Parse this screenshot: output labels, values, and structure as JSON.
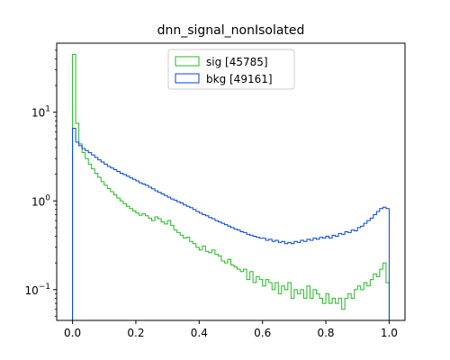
{
  "chart_data": {
    "type": "histogram-step",
    "title": "dnn_signal_nonIsolated",
    "xlabel": "",
    "ylabel": "",
    "xlim": [
      -0.05,
      1.05
    ],
    "ylim": [
      0.045,
      60
    ],
    "yscale": "log",
    "x_ticks": [
      0.0,
      0.2,
      0.4,
      0.6,
      0.8,
      1.0
    ],
    "x_tick_labels": [
      "0.0",
      "0.2",
      "0.4",
      "0.6",
      "0.8",
      "1.0"
    ],
    "y_ticks": [
      0.1,
      1,
      10
    ],
    "y_tick_labels": [
      "10",
      "10",
      "10"
    ],
    "y_tick_exponents": [
      "−1",
      "0",
      "1"
    ],
    "grid": false,
    "legend_position": "top-center",
    "bins": {
      "start": 0.0,
      "end": 1.0,
      "count": 100
    },
    "series": [
      {
        "name": "sig [45785]",
        "color": "#22bb22",
        "values": [
          45,
          7.5,
          4.4,
          3.5,
          3.0,
          2.6,
          2.3,
          2.05,
          1.85,
          1.65,
          1.5,
          1.38,
          1.27,
          1.17,
          1.08,
          1.0,
          0.93,
          0.87,
          0.82,
          0.77,
          0.73,
          0.69,
          0.72,
          0.68,
          0.64,
          0.6,
          0.66,
          0.63,
          0.58,
          0.55,
          0.6,
          0.53,
          0.47,
          0.44,
          0.41,
          0.38,
          0.39,
          0.35,
          0.33,
          0.3,
          0.28,
          0.31,
          0.27,
          0.26,
          0.28,
          0.25,
          0.24,
          0.21,
          0.2,
          0.22,
          0.19,
          0.18,
          0.17,
          0.16,
          0.17,
          0.13,
          0.16,
          0.12,
          0.14,
          0.13,
          0.11,
          0.13,
          0.12,
          0.1,
          0.12,
          0.09,
          0.11,
          0.1,
          0.12,
          0.08,
          0.1,
          0.09,
          0.1,
          0.08,
          0.11,
          0.08,
          0.1,
          0.09,
          0.08,
          0.07,
          0.09,
          0.07,
          0.08,
          0.07,
          0.08,
          0.06,
          0.08,
          0.09,
          0.08,
          0.1,
          0.11,
          0.1,
          0.12,
          0.11,
          0.13,
          0.15,
          0.14,
          0.17,
          0.2,
          0.12
        ]
      },
      {
        "name": "bkg [49161]",
        "color": "#0044dd",
        "values": [
          6.6,
          4.6,
          4.2,
          3.9,
          3.7,
          3.5,
          3.3,
          3.1,
          2.9,
          2.75,
          2.6,
          2.45,
          2.35,
          2.25,
          2.15,
          2.05,
          1.98,
          1.9,
          1.82,
          1.75,
          1.68,
          1.6,
          1.55,
          1.5,
          1.43,
          1.37,
          1.3,
          1.25,
          1.2,
          1.15,
          1.1,
          1.05,
          1.02,
          0.98,
          0.95,
          0.9,
          0.87,
          0.84,
          0.8,
          0.76,
          0.73,
          0.7,
          0.68,
          0.65,
          0.63,
          0.6,
          0.58,
          0.56,
          0.54,
          0.52,
          0.5,
          0.48,
          0.47,
          0.45,
          0.44,
          0.42,
          0.41,
          0.4,
          0.39,
          0.38,
          0.38,
          0.36,
          0.37,
          0.35,
          0.36,
          0.34,
          0.35,
          0.33,
          0.34,
          0.33,
          0.35,
          0.34,
          0.36,
          0.35,
          0.37,
          0.36,
          0.38,
          0.37,
          0.39,
          0.38,
          0.4,
          0.38,
          0.41,
          0.4,
          0.43,
          0.42,
          0.45,
          0.44,
          0.47,
          0.46,
          0.5,
          0.52,
          0.56,
          0.6,
          0.64,
          0.7,
          0.76,
          0.82,
          0.85,
          0.82
        ]
      }
    ]
  }
}
